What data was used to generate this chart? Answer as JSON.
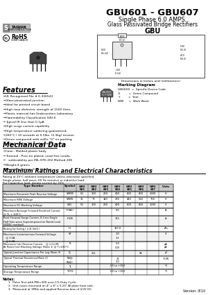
{
  "title": "GBU601 - GBU607",
  "subtitle": "Single Phase 6.0 AMPS.",
  "subtitle2": "Glass Passivated Bridge Rectifiers",
  "package": "GBU",
  "features_title": "Features",
  "features": [
    "UL Recognized File # E-326543",
    "Glass passivated junction",
    "Ideal for printed circuit board",
    "High case dielectric strength of 1500 Vrms",
    "Plastic material has Underwriters Laboratory",
    "Flammability Classification 94V-0",
    "Typical IR less than 0.1μA",
    "High surge current capability",
    "High temperature soldering guaranteed:",
    "260°C / 10 seconds at 0.5lbs. (2.3kg) tension",
    "Green compound with suffix \"G\" on packing",
    "code & prefix \"G\" on datacode."
  ],
  "mech_title": "Mechanical Data",
  "mech": [
    "Case : Molded plastic body",
    "Terminal : Pure tin plated, Lead free Leads,",
    "   solderability per MIL-STD-202 Method 208",
    "Weight:4 grams",
    "Mounting Torque: 5 in. lb. max."
  ],
  "table_title": "Maximum Ratings and Electrical Characteristics",
  "table_note1": "Rating at 25°C ambient temperature unless otherwise specified.",
  "table_note2": "Single phase, half wave, 60 Hz resistive or inductive load.",
  "table_note3": "For Capacitive load, derate current by 20%.",
  "col_headers": [
    "Type Number",
    "Symbol",
    "GBU\n601",
    "GBU\n602",
    "GBU\n603",
    "GBU\n604",
    "GBU\n605",
    "GBU\n606",
    "GBU\n607",
    "Units"
  ],
  "rows": [
    [
      "Maximum Recurrent Peak Reverse Voltage",
      "VRRM",
      "50",
      "100",
      "200",
      "400",
      "600",
      "800",
      "1000",
      "V"
    ],
    [
      "Maximum RMS Voltage",
      "VRMS",
      "35",
      "70",
      "140",
      "280",
      "420",
      "560",
      "700",
      "V"
    ],
    [
      "Maximum DC Blocking Voltage",
      "VDC",
      "50",
      "100",
      "200",
      "400",
      "600",
      "800",
      "1000",
      "V"
    ],
    [
      "Maximum Average Forward Rectified Current\n@ TL = 100°C",
      "IF(AV)",
      "",
      "",
      "",
      "6.0",
      "",
      "",
      "",
      "A"
    ],
    [
      "Peak Forward Surge Current, 8.3 ms Single\nHalf Sine-wave Superimposed on Rated Load\n(JEDEC method)",
      "IFSM",
      "",
      "",
      "",
      "175",
      "",
      "",
      "",
      "A"
    ],
    [
      "Rating for fusing ( t=8.3mS )",
      "I²t",
      "",
      "",
      "",
      "127.0",
      "",
      "",
      "",
      "A²s"
    ],
    [
      "Maximum Instantaneous Forward Voltage\n   @ 3.0A\n   @ 6.0A",
      "VF",
      "",
      "",
      "",
      "1.0\n1.1",
      "",
      "",
      "",
      "V"
    ],
    [
      "Maximum (dc) Reverse Current    @ 1.0×VR\nAt Rated (dc) Blocking Voltage (Note 1) @ T=100°C",
      "IR",
      "",
      "",
      "",
      "5.0\n500",
      "",
      "",
      "",
      "μA\nμA"
    ],
    [
      "Typical Junction Capacitance Per Leg (Note 3)",
      "CJ",
      "",
      "211",
      "",
      "",
      "",
      "94",
      "",
      "pF"
    ],
    [
      "Typical Thermal Resistance(Note 2)",
      "RthJL\nRthJC",
      "",
      "",
      "",
      "21\n3.0",
      "",
      "",
      "",
      "°C/W"
    ],
    [
      "Operating Temperature Range",
      "TJ",
      "",
      "",
      "",
      "-55 to +150",
      "",
      "",
      "",
      "°C"
    ],
    [
      "Storage Temperature Range",
      "TSTG",
      "",
      "",
      "",
      "-55 to +150",
      "",
      "",
      "",
      "°C"
    ]
  ],
  "notes": [
    "1.  Pulse Test with PW=300 usec,1% Duty Cycle.",
    "2.  Unit cases mounted on 4\" x 8\" x 0.25\" Al plate heat sink.",
    "3.  Measured at 1MHz and applied Reverse bias of 4.0V DC."
  ],
  "version": "Version: IE10",
  "marking_title": "Marking Diagram",
  "marking_lines": [
    "GBU6XX  =  Specific Device Code",
    "G          =  Green Compound",
    "Y          =  Year",
    "WW      =  Work Week"
  ],
  "bg_color": "#ffffff"
}
